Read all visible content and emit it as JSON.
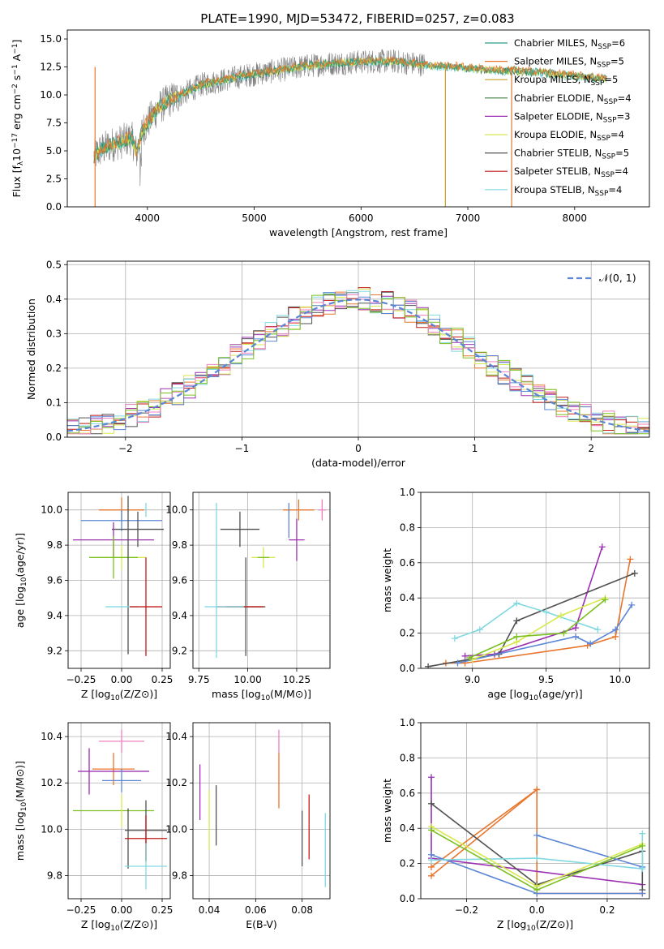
{
  "figure": {
    "title": "PLATE=1990, MJD=53472, FIBERID=0257, z=0.083"
  },
  "colors": {
    "chabrier_miles": "#2ca089",
    "salpeter_miles": "#e8772e",
    "kroupa_miles": "#c8a020",
    "chabrier_elodie": "#3d7a3d",
    "salpeter_elodie": "#9b30b0",
    "kroupa_elodie": "#d8e850",
    "chabrier_stelib": "#505050",
    "salpeter_stelib": "#c01818",
    "kroupa_stelib": "#80d8e0",
    "data_gray": "#808080",
    "blue": "#5b86d6",
    "pink": "#f080c0",
    "green": "#7cc020",
    "normal_dash": "#5b86d6",
    "grid": "#b0b0b0"
  },
  "chart_data": [
    {
      "id": "spectrum",
      "type": "line",
      "xlabel": "wavelength [Angstrom, rest frame]",
      "ylabel": "Flux [f_λ10^-17 erg cm^-2 s^-1 A^-1]",
      "xlim": [
        3250,
        8700
      ],
      "ylim": [
        0,
        15.8
      ],
      "xticks": [
        4000,
        5000,
        6000,
        7000,
        8000
      ],
      "yticks": [
        0.0,
        2.5,
        5.0,
        7.5,
        10.0,
        12.5,
        15.0
      ],
      "grid": false,
      "legend_loc": "right",
      "legend": [
        {
          "label": "Chabrier MILES, N_SSP=6",
          "base": "Chabrier MILES, N",
          "sub": "SSP",
          "tail": "=6",
          "color_key": "chabrier_miles"
        },
        {
          "label": "Salpeter MILES, N_SSP=5",
          "base": "Salpeter MILES, N",
          "sub": "SSP",
          "tail": "=5",
          "color_key": "salpeter_miles"
        },
        {
          "label": "Kroupa MILES, N_SSP=5",
          "base": "Kroupa MILES, N",
          "sub": "SSP",
          "tail": "=5",
          "color_key": "kroupa_miles"
        },
        {
          "label": "Chabrier ELODIE, N_SSP=4",
          "base": "Chabrier ELODIE, N",
          "sub": "SSP",
          "tail": "=4",
          "color_key": "chabrier_elodie"
        },
        {
          "label": "Salpeter ELODIE, N_SSP=3",
          "base": "Salpeter ELODIE, N",
          "sub": "SSP",
          "tail": "=3",
          "color_key": "salpeter_elodie"
        },
        {
          "label": "Kroupa ELODIE, N_SSP=4",
          "base": "Kroupa ELODIE, N",
          "sub": "SSP",
          "tail": "=4",
          "color_key": "kroupa_elodie"
        },
        {
          "label": "Chabrier STELIB, N_SSP=5",
          "base": "Chabrier STELIB, N",
          "sub": "SSP",
          "tail": "=5",
          "color_key": "chabrier_stelib"
        },
        {
          "label": "Salpeter STELIB, N_SSP=4",
          "base": "Salpeter STELIB, N",
          "sub": "SSP",
          "tail": "=4",
          "color_key": "salpeter_stelib"
        },
        {
          "label": "Kroupa STELIB, N_SSP=4",
          "base": "Kroupa STELIB, N",
          "sub": "SSP",
          "tail": "=4",
          "color_key": "kroupa_stelib"
        }
      ],
      "envelope": {
        "x": [
          3500,
          3550,
          3650,
          3750,
          3850,
          3900,
          3950,
          4000,
          4100,
          4200,
          4300,
          4400,
          4500,
          4700,
          4900,
          5100,
          5300,
          5500,
          5700,
          5900,
          6100,
          6300,
          6500,
          6700,
          6900,
          7100,
          7300,
          7500,
          7700,
          7900,
          8100,
          8300
        ],
        "y": [
          4.5,
          5.0,
          5.5,
          5.8,
          6.2,
          4.8,
          6.8,
          7.5,
          8.8,
          9.5,
          9.9,
          10.4,
          10.9,
          11.3,
          11.7,
          12.0,
          12.3,
          12.6,
          12.8,
          12.9,
          13.0,
          13.0,
          12.8,
          12.6,
          12.5,
          12.3,
          12.2,
          12.1,
          12.0,
          11.8,
          11.6,
          11.4
        ],
        "noise_start": 3500,
        "noise_end": 6600
      },
      "vertical_lines": [
        {
          "x": 3510,
          "color_key": "salpeter_miles"
        },
        {
          "x": 6790,
          "color_key": "kroupa_miles"
        },
        {
          "x": 7410,
          "color_key": "salpeter_miles"
        }
      ]
    },
    {
      "id": "residual_hist",
      "type": "histogram",
      "xlabel": "(data-model)/error",
      "ylabel": "Normed distribution",
      "xlim": [
        -2.5,
        2.5
      ],
      "ylim": [
        0,
        0.51
      ],
      "xticks": [
        -2,
        -1,
        0,
        1,
        2
      ],
      "yticks": [
        0.0,
        0.1,
        0.2,
        0.3,
        0.4,
        0.5
      ],
      "grid": true,
      "bin_width": 0.1,
      "bin_start": -2.5,
      "normal_label": "𝒩(0, 1)",
      "normal_mean": 0,
      "normal_sigma": 1,
      "legend_loc": "upper right",
      "series_color_keys": [
        "salpeter_miles",
        "salpeter_elodie",
        "salpeter_stelib",
        "chabrier_stelib",
        "kroupa_elodie",
        "kroupa_stelib",
        "blue",
        "pink",
        "green"
      ]
    },
    {
      "id": "age_vs_Z",
      "type": "errorbar",
      "xlabel_base": "Z [log",
      "xlabel_sub": "10",
      "xlabel_tail": "(Z/Z⊙)]",
      "ylabel_base": "age  [log",
      "ylabel_sub": "10",
      "ylabel_tail": "(age/yr)]",
      "xlim": [
        -0.33,
        0.3
      ],
      "ylim": [
        9.1,
        10.1
      ],
      "xticks": [
        -0.25,
        0.0,
        0.25
      ],
      "xtick_labels": [
        "−0.25",
        "0.00",
        "0.25"
      ],
      "yticks": [
        9.2,
        9.4,
        9.6,
        9.8,
        10.0
      ],
      "grid": true,
      "points": [
        {
          "x": 0.0,
          "y": 10.0,
          "xerr": 0.14,
          "yerr": 0.07,
          "c": "salpeter_miles"
        },
        {
          "x": 0.15,
          "y": 10.0,
          "xerr": 0.0,
          "yerr": 0.04,
          "c": "kroupa_stelib"
        },
        {
          "x": 0.0,
          "y": 9.94,
          "xerr": 0.25,
          "yerr": 0.06,
          "c": "blue"
        },
        {
          "x": 0.1,
          "y": 9.89,
          "xerr": 0.16,
          "yerr": 0.1,
          "c": "chabrier_stelib"
        },
        {
          "x": -0.05,
          "y": 9.83,
          "xerr": 0.25,
          "yerr": 0.1,
          "c": "salpeter_elodie"
        },
        {
          "x": 0.0,
          "y": 9.73,
          "xerr": 0.15,
          "yerr": 0.07,
          "c": "kroupa_elodie"
        },
        {
          "x": -0.05,
          "y": 9.73,
          "xerr": 0.15,
          "yerr": 0.12,
          "c": "green"
        },
        {
          "x": 0.04,
          "y": 9.63,
          "xerr": 0.0,
          "yerr": 0.45,
          "c": "chabrier_stelib"
        },
        {
          "x": 0.0,
          "y": 9.45,
          "xerr": 0.1,
          "yerr": 0.0,
          "c": "kroupa_stelib"
        },
        {
          "x": 0.15,
          "y": 9.45,
          "xerr": 0.1,
          "yerr": 0.28,
          "c": "salpeter_stelib"
        }
      ]
    },
    {
      "id": "age_vs_mass",
      "type": "errorbar",
      "xlabel_base": "mass [log",
      "xlabel_sub": "10",
      "xlabel_tail": "(M/M⊙)]",
      "xlim": [
        9.72,
        10.42
      ],
      "ylim": [
        9.1,
        10.1
      ],
      "xticks": [
        9.75,
        10.0,
        10.25
      ],
      "xtick_labels": [
        "9.75",
        "10.00",
        "10.25"
      ],
      "yticks": [
        9.2,
        9.4,
        9.6,
        9.8,
        10.0
      ],
      "grid": true,
      "points": [
        {
          "x": 10.26,
          "y": 10.0,
          "xerr": 0.08,
          "yerr": 0.06,
          "c": "salpeter_miles"
        },
        {
          "x": 10.38,
          "y": 10.0,
          "xerr": 0.02,
          "yerr": 0.06,
          "c": "pink"
        },
        {
          "x": 10.21,
          "y": 9.94,
          "xerr": 0.0,
          "yerr": 0.1,
          "c": "blue"
        },
        {
          "x": 9.96,
          "y": 9.89,
          "xerr": 0.1,
          "yerr": 0.1,
          "c": "chabrier_stelib"
        },
        {
          "x": 10.25,
          "y": 9.83,
          "xerr": 0.04,
          "yerr": 0.12,
          "c": "salpeter_elodie"
        },
        {
          "x": 10.08,
          "y": 9.73,
          "xerr": 0.06,
          "yerr": 0.06,
          "c": "kroupa_elodie"
        },
        {
          "x": 10.08,
          "y": 9.73,
          "xerr": 0.03,
          "yerr": 0.0,
          "c": "green"
        },
        {
          "x": 9.84,
          "y": 9.6,
          "xerr": 0.0,
          "yerr": 0.44,
          "c": "kroupa_stelib"
        },
        {
          "x": 9.99,
          "y": 9.45,
          "xerr": 0.1,
          "yerr": 0.28,
          "c": "chabrier_stelib"
        },
        {
          "x": 9.96,
          "y": 9.45,
          "xerr": 0.12,
          "yerr": 0.0,
          "c": "salpeter_stelib"
        },
        {
          "x": 9.88,
          "y": 9.45,
          "xerr": 0.1,
          "yerr": 0.0,
          "c": "kroupa_stelib"
        }
      ]
    },
    {
      "id": "mass_weight_vs_age",
      "type": "line",
      "xlabel_base": "age  [log",
      "xlabel_sub": "10",
      "xlabel_tail": "(age/yr)]",
      "ylabel": "mass weight",
      "xlim": [
        8.65,
        10.2
      ],
      "ylim": [
        0,
        1.0
      ],
      "xticks": [
        9.0,
        9.5,
        10.0
      ],
      "xtick_labels": [
        "9.0",
        "9.5",
        "10.0"
      ],
      "yticks": [
        0.0,
        0.2,
        0.4,
        0.6,
        0.8,
        1.0
      ],
      "grid": true,
      "series": [
        {
          "c": "salpeter_miles",
          "x": [
            8.82,
            8.95,
            9.78,
            9.97,
            10.07
          ],
          "y": [
            0.03,
            0.03,
            0.13,
            0.18,
            0.62
          ]
        },
        {
          "c": "salpeter_elodie",
          "x": [
            8.95,
            9.15,
            9.7,
            9.88
          ],
          "y": [
            0.07,
            0.08,
            0.23,
            0.69
          ]
        },
        {
          "c": "chabrier_stelib",
          "x": [
            8.7,
            9.18,
            9.3,
            10.1
          ],
          "y": [
            0.01,
            0.08,
            0.27,
            0.54
          ]
        },
        {
          "c": "blue",
          "x": [
            8.9,
            9.7,
            9.8,
            9.97,
            10.08
          ],
          "y": [
            0.03,
            0.18,
            0.14,
            0.22,
            0.36
          ]
        },
        {
          "c": "kroupa_stelib",
          "x": [
            8.88,
            9.05,
            9.3,
            9.5,
            9.85
          ],
          "y": [
            0.17,
            0.22,
            0.37,
            0.32,
            0.22
          ]
        },
        {
          "c": "kroupa_elodie",
          "x": [
            9.0,
            9.3,
            9.6,
            9.9
          ],
          "y": [
            0.05,
            0.15,
            0.3,
            0.4
          ]
        },
        {
          "c": "green",
          "x": [
            8.98,
            9.3,
            9.62,
            9.9
          ],
          "y": [
            0.06,
            0.18,
            0.2,
            0.39
          ]
        }
      ]
    },
    {
      "id": "mass_vs_Z",
      "type": "errorbar",
      "xlabel_base": "Z [log",
      "xlabel_sub": "10",
      "xlabel_tail": "(Z/Z⊙)]",
      "ylabel_base": "mass [log",
      "ylabel_sub": "10",
      "ylabel_tail": "(M/M⊙)]",
      "xlim": [
        -0.33,
        0.3
      ],
      "ylim": [
        9.7,
        10.46
      ],
      "xticks": [
        -0.25,
        0.0,
        0.25
      ],
      "xtick_labels": [
        "−0.25",
        "0.00",
        "0.25"
      ],
      "yticks": [
        9.8,
        10.0,
        10.2,
        10.4
      ],
      "grid": true,
      "points": [
        {
          "x": 0.0,
          "y": 10.38,
          "xerr": 0.14,
          "yerr": 0.05,
          "c": "pink"
        },
        {
          "x": -0.05,
          "y": 10.26,
          "xerr": 0.13,
          "yerr": 0.07,
          "c": "salpeter_miles"
        },
        {
          "x": -0.05,
          "y": 10.25,
          "xerr": 0.22,
          "yerr": 0.0,
          "c": "salpeter_elodie"
        },
        {
          "x": -0.2,
          "y": 10.25,
          "xerr": 0.0,
          "yerr": 0.1,
          "c": "salpeter_elodie"
        },
        {
          "x": 0.0,
          "y": 10.21,
          "xerr": 0.12,
          "yerr": 0.05,
          "c": "blue"
        },
        {
          "x": -0.05,
          "y": 10.08,
          "xerr": 0.25,
          "yerr": 0.0,
          "c": "green"
        },
        {
          "x": 0.0,
          "y": 10.08,
          "xerr": 0.0,
          "yerr": 0.07,
          "c": "kroupa_elodie"
        },
        {
          "x": 0.15,
          "y": 9.995,
          "xerr": 0.13,
          "yerr": 0.13,
          "c": "chabrier_stelib"
        },
        {
          "x": 0.04,
          "y": 9.96,
          "xerr": 0.0,
          "yerr": 0.13,
          "c": "chabrier_stelib"
        },
        {
          "x": 0.15,
          "y": 9.96,
          "xerr": 0.13,
          "yerr": 0.1,
          "c": "salpeter_stelib"
        },
        {
          "x": 0.15,
          "y": 9.84,
          "xerr": 0.13,
          "yerr": 0.1,
          "c": "kroupa_stelib"
        }
      ]
    },
    {
      "id": "mass_vs_ebv",
      "type": "errorbar",
      "xlabel": "E(B-V)",
      "xlim": [
        0.033,
        0.092
      ],
      "ylim": [
        9.7,
        10.46
      ],
      "xticks": [
        0.04,
        0.06,
        0.08
      ],
      "xtick_labels": [
        "0.04",
        "0.06",
        "0.08"
      ],
      "yticks": [
        9.8,
        10.0,
        10.2,
        10.4
      ],
      "grid": true,
      "points": [
        {
          "x": 0.036,
          "y": 10.16,
          "xerr": 0,
          "yerr": 0.12,
          "c": "salpeter_elodie"
        },
        {
          "x": 0.04,
          "y": 10.04,
          "xerr": 0,
          "yerr": 0.13,
          "c": "kroupa_elodie"
        },
        {
          "x": 0.043,
          "y": 10.06,
          "xerr": 0,
          "yerr": 0.13,
          "c": "chabrier_stelib"
        },
        {
          "x": 0.07,
          "y": 10.38,
          "xerr": 0,
          "yerr": 0.05,
          "c": "pink"
        },
        {
          "x": 0.07,
          "y": 10.21,
          "xerr": 0,
          "yerr": 0.12,
          "c": "salpeter_miles"
        },
        {
          "x": 0.08,
          "y": 9.96,
          "xerr": 0,
          "yerr": 0.12,
          "c": "chabrier_stelib"
        },
        {
          "x": 0.083,
          "y": 10.01,
          "xerr": 0,
          "yerr": 0.14,
          "c": "salpeter_stelib"
        },
        {
          "x": 0.09,
          "y": 9.91,
          "xerr": 0,
          "yerr": 0.16,
          "c": "kroupa_stelib"
        }
      ]
    },
    {
      "id": "mass_weight_vs_Z",
      "type": "line",
      "xlabel_base": "Z [log",
      "xlabel_sub": "10",
      "xlabel_tail": "(Z/Z⊙)]",
      "ylabel": "mass weight",
      "xlim": [
        -0.33,
        0.32
      ],
      "ylim": [
        0,
        1.0
      ],
      "xticks": [
        -0.2,
        0.0,
        0.2
      ],
      "xtick_labels": [
        "−0.2",
        "0.0",
        "0.2"
      ],
      "yticks": [
        0.0,
        0.2,
        0.4,
        0.6,
        0.8,
        1.0
      ],
      "grid": true,
      "series": [
        {
          "c": "salpeter_miles",
          "x": [
            -0.3,
            0.0,
            0.0,
            0.3,
            0.3
          ],
          "y": [
            0.13,
            0.62,
            0.03,
            0.03,
            0.03
          ]
        },
        {
          "c": "salpeter_miles",
          "x": [
            -0.3,
            0.0
          ],
          "y": [
            0.18,
            0.62
          ]
        },
        {
          "c": "salpeter_elodie",
          "x": [
            -0.3,
            -0.3,
            0.3
          ],
          "y": [
            0.69,
            0.23,
            0.08
          ]
        },
        {
          "c": "chabrier_stelib",
          "x": [
            -0.3,
            0.0,
            0.3,
            0.3
          ],
          "y": [
            0.54,
            0.08,
            0.27,
            0.05
          ]
        },
        {
          "c": "blue",
          "x": [
            -0.3,
            0.0,
            0.3
          ],
          "y": [
            0.25,
            0.03,
            0.03
          ]
        },
        {
          "c": "blue",
          "x": [
            0.0,
            0.3
          ],
          "y": [
            0.36,
            0.18
          ]
        },
        {
          "c": "kroupa_stelib",
          "x": [
            -0.3,
            0.0,
            0.3,
            0.3
          ],
          "y": [
            0.22,
            0.23,
            0.17,
            0.37
          ]
        },
        {
          "c": "kroupa_elodie",
          "x": [
            -0.3,
            0.0,
            0.3
          ],
          "y": [
            0.41,
            0.07,
            0.31
          ]
        },
        {
          "c": "green",
          "x": [
            -0.3,
            0.0,
            0.3
          ],
          "y": [
            0.39,
            0.05,
            0.3
          ]
        }
      ]
    }
  ]
}
